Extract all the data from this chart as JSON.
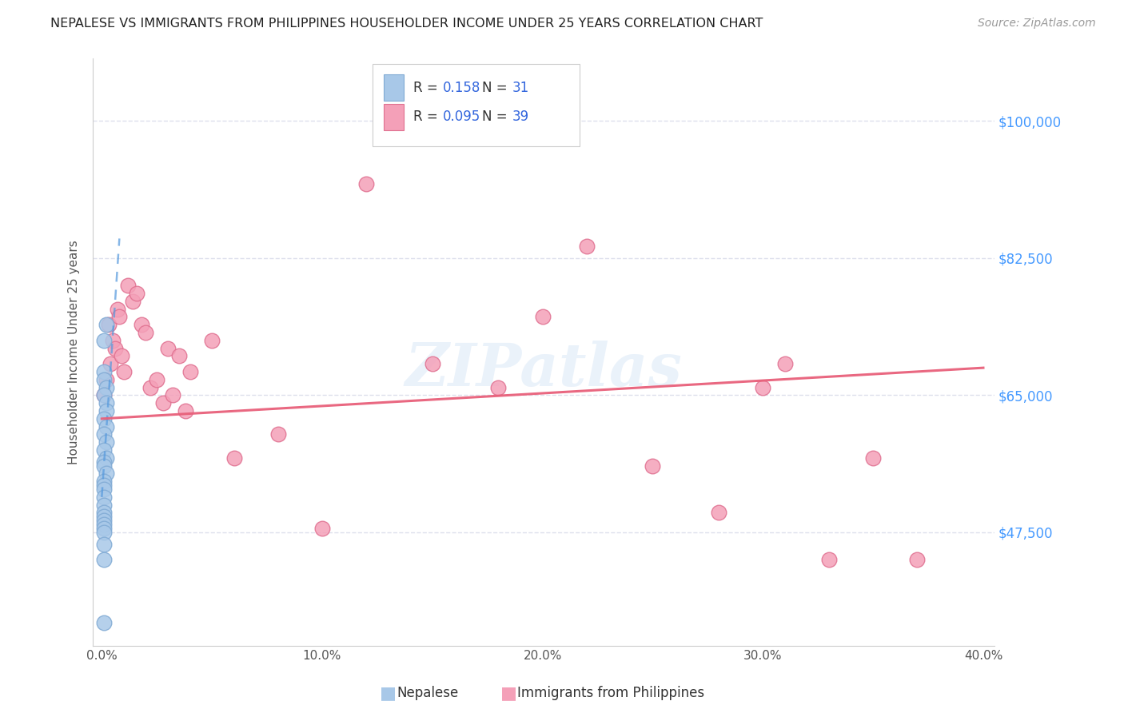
{
  "title": "NEPALESE VS IMMIGRANTS FROM PHILIPPINES HOUSEHOLDER INCOME UNDER 25 YEARS CORRELATION CHART",
  "source": "Source: ZipAtlas.com",
  "xlabel_ticks": [
    "0.0%",
    "10.0%",
    "20.0%",
    "30.0%",
    "40.0%"
  ],
  "xlabel_tick_vals": [
    0.0,
    0.1,
    0.2,
    0.3,
    0.4
  ],
  "ylabel": "Householder Income Under 25 years",
  "ylabel_ticks": [
    "$47,500",
    "$65,000",
    "$82,500",
    "$100,000"
  ],
  "ylabel_tick_vals": [
    47500,
    65000,
    82500,
    100000
  ],
  "ylim": [
    33000,
    108000
  ],
  "xlim": [
    -0.004,
    0.405
  ],
  "legend_label1": "Nepalese",
  "legend_label2": "Immigrants from Philippines",
  "legend_R1": "0.158",
  "legend_N1": "31",
  "legend_R2": "0.095",
  "legend_N2": "39",
  "watermark": "ZIPatlas",
  "nepalese_x": [
    0.001,
    0.002,
    0.001,
    0.001,
    0.002,
    0.001,
    0.002,
    0.002,
    0.001,
    0.002,
    0.001,
    0.002,
    0.001,
    0.002,
    0.001,
    0.001,
    0.002,
    0.001,
    0.001,
    0.001,
    0.001,
    0.001,
    0.001,
    0.001,
    0.001,
    0.001,
    0.001,
    0.001,
    0.001,
    0.001,
    0.001
  ],
  "nepalese_y": [
    72000,
    74000,
    68000,
    67000,
    66000,
    65000,
    64000,
    63000,
    62000,
    61000,
    60000,
    59000,
    58000,
    57000,
    56500,
    56000,
    55000,
    54000,
    53500,
    53000,
    52000,
    51000,
    50000,
    49500,
    49000,
    48500,
    48000,
    47500,
    46000,
    44000,
    36000
  ],
  "philippines_x": [
    0.001,
    0.002,
    0.003,
    0.004,
    0.005,
    0.006,
    0.007,
    0.008,
    0.009,
    0.01,
    0.012,
    0.014,
    0.016,
    0.018,
    0.02,
    0.022,
    0.025,
    0.028,
    0.03,
    0.032,
    0.035,
    0.038,
    0.04,
    0.05,
    0.06,
    0.08,
    0.1,
    0.12,
    0.15,
    0.18,
    0.2,
    0.22,
    0.25,
    0.28,
    0.3,
    0.31,
    0.33,
    0.35,
    0.37
  ],
  "philippines_y": [
    65000,
    67000,
    74000,
    69000,
    72000,
    71000,
    76000,
    75000,
    70000,
    68000,
    79000,
    77000,
    78000,
    74000,
    73000,
    66000,
    67000,
    64000,
    71000,
    65000,
    70000,
    63000,
    68000,
    72000,
    57000,
    60000,
    48000,
    92000,
    69000,
    66000,
    75000,
    84000,
    56000,
    50000,
    66000,
    69000,
    44000,
    57000,
    44000
  ],
  "dot_color_blue": "#a8c8e8",
  "dot_color_pink": "#f4a0b8",
  "dot_edgecolor_blue": "#80aad4",
  "dot_edgecolor_pink": "#e07090",
  "trend_color_blue": "#5599dd",
  "trend_color_pink": "#e8607a",
  "grid_color": "#dde0ec",
  "background_color": "#ffffff",
  "title_color": "#222222",
  "source_color": "#999999",
  "axis_label_color_right": "#4499ff",
  "blue_trendline_x": [
    0.0,
    0.008
  ],
  "pink_trendline_x": [
    0.0,
    0.4
  ]
}
